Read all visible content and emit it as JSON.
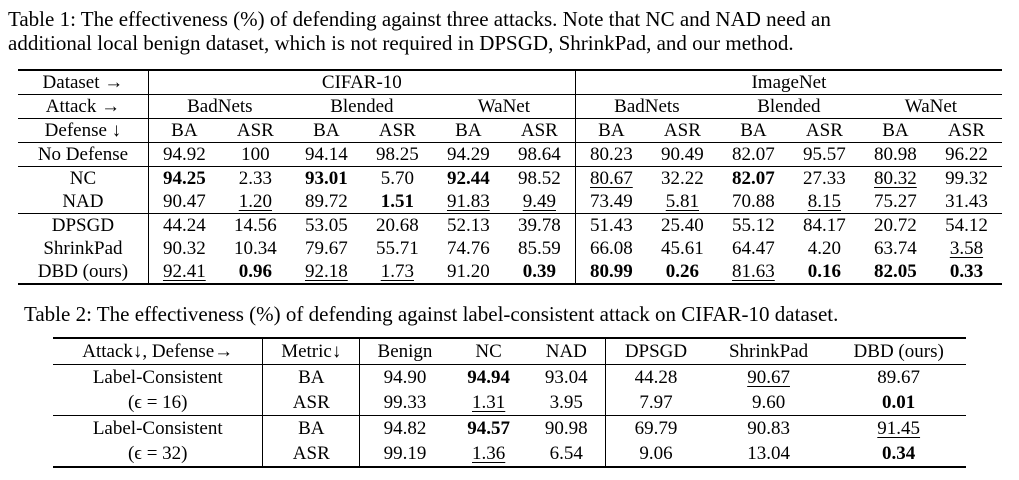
{
  "table1": {
    "caption_lines": [
      "Table 1: The effectiveness (%) of defending against three attacks. Note that NC and NAD need an",
      "additional local benign dataset, which is not required in DPSGD, ShrinkPad, and our method."
    ],
    "header": {
      "dataset_label": "Dataset →",
      "attack_label": "Attack →",
      "defense_label": "Defense ↓",
      "datasets": [
        "CIFAR-10",
        "ImageNet"
      ],
      "attacks": [
        "BadNets",
        "Blended",
        "WaNet",
        "BadNets",
        "Blended",
        "WaNet"
      ],
      "metrics": [
        "BA",
        "ASR",
        "BA",
        "ASR",
        "BA",
        "ASR",
        "BA",
        "ASR",
        "BA",
        "ASR",
        "BA",
        "ASR"
      ]
    },
    "rows": [
      {
        "defense": "No Defense",
        "cells": [
          {
            "v": "94.92"
          },
          {
            "v": "100"
          },
          {
            "v": "94.14"
          },
          {
            "v": "98.25"
          },
          {
            "v": "94.29"
          },
          {
            "v": "98.64"
          },
          {
            "v": "80.23"
          },
          {
            "v": "90.49"
          },
          {
            "v": "82.07"
          },
          {
            "v": "95.57"
          },
          {
            "v": "80.98"
          },
          {
            "v": "96.22"
          }
        ]
      },
      {
        "defense": "NC",
        "cells": [
          {
            "v": "94.25",
            "s": "b"
          },
          {
            "v": "2.33"
          },
          {
            "v": "93.01",
            "s": "b"
          },
          {
            "v": "5.70"
          },
          {
            "v": "92.44",
            "s": "b"
          },
          {
            "v": "98.52"
          },
          {
            "v": "80.67",
            "s": "u"
          },
          {
            "v": "32.22"
          },
          {
            "v": "82.07",
            "s": "b"
          },
          {
            "v": "27.33"
          },
          {
            "v": "80.32",
            "s": "u"
          },
          {
            "v": "99.32"
          }
        ]
      },
      {
        "defense": "NAD",
        "cells": [
          {
            "v": "90.47"
          },
          {
            "v": "1.20",
            "s": "u"
          },
          {
            "v": "89.72"
          },
          {
            "v": "1.51",
            "s": "b"
          },
          {
            "v": "91.83",
            "s": "u"
          },
          {
            "v": "9.49",
            "s": "u"
          },
          {
            "v": "73.49"
          },
          {
            "v": "5.81",
            "s": "u"
          },
          {
            "v": "70.88"
          },
          {
            "v": "8.15",
            "s": "u"
          },
          {
            "v": "75.27"
          },
          {
            "v": "31.43"
          }
        ]
      },
      {
        "defense": "DPSGD",
        "cells": [
          {
            "v": "44.24"
          },
          {
            "v": "14.56"
          },
          {
            "v": "53.05"
          },
          {
            "v": "20.68"
          },
          {
            "v": "52.13"
          },
          {
            "v": "39.78"
          },
          {
            "v": "51.43"
          },
          {
            "v": "25.40"
          },
          {
            "v": "55.12"
          },
          {
            "v": "84.17"
          },
          {
            "v": "20.72"
          },
          {
            "v": "54.12"
          }
        ]
      },
      {
        "defense": "ShrinkPad",
        "cells": [
          {
            "v": "90.32"
          },
          {
            "v": "10.34"
          },
          {
            "v": "79.67"
          },
          {
            "v": "55.71"
          },
          {
            "v": "74.76"
          },
          {
            "v": "85.59"
          },
          {
            "v": "66.08"
          },
          {
            "v": "45.61"
          },
          {
            "v": "64.47"
          },
          {
            "v": "4.20"
          },
          {
            "v": "63.74"
          },
          {
            "v": "3.58",
            "s": "u"
          }
        ]
      },
      {
        "defense": "DBD (ours)",
        "cells": [
          {
            "v": "92.41",
            "s": "u"
          },
          {
            "v": "0.96",
            "s": "b"
          },
          {
            "v": "92.18",
            "s": "u"
          },
          {
            "v": "1.73",
            "s": "u"
          },
          {
            "v": "91.20"
          },
          {
            "v": "0.39",
            "s": "b"
          },
          {
            "v": "80.99",
            "s": "b"
          },
          {
            "v": "0.26",
            "s": "b"
          },
          {
            "v": "81.63",
            "s": "u"
          },
          {
            "v": "0.16",
            "s": "b"
          },
          {
            "v": "82.05",
            "s": "b"
          },
          {
            "v": "0.33",
            "s": "b"
          }
        ]
      }
    ]
  },
  "table2": {
    "caption": "Table 2: The effectiveness (%) of defending against label-consistent attack on CIFAR-10 dataset.",
    "header": [
      "Attack↓, Defense→",
      "Metric↓",
      "Benign",
      "NC",
      "NAD",
      "DPSGD",
      "ShrinkPad",
      "DBD (ours)"
    ],
    "groups": [
      {
        "attack": "Label-Consistent",
        "param": "(ϵ = 16)",
        "rows": [
          {
            "metric": "BA",
            "cells": [
              {
                "v": "94.90"
              },
              {
                "v": "94.94",
                "s": "b"
              },
              {
                "v": "93.04"
              },
              {
                "v": "44.28"
              },
              {
                "v": "90.67",
                "s": "u"
              },
              {
                "v": "89.67"
              }
            ]
          },
          {
            "metric": "ASR",
            "cells": [
              {
                "v": "99.33"
              },
              {
                "v": "1.31",
                "s": "u"
              },
              {
                "v": "3.95"
              },
              {
                "v": "7.97"
              },
              {
                "v": "9.60"
              },
              {
                "v": "0.01",
                "s": "b"
              }
            ]
          }
        ]
      },
      {
        "attack": "Label-Consistent",
        "param": "(ϵ = 32)",
        "rows": [
          {
            "metric": "BA",
            "cells": [
              {
                "v": "94.82"
              },
              {
                "v": "94.57",
                "s": "b"
              },
              {
                "v": "90.98"
              },
              {
                "v": "69.79"
              },
              {
                "v": "90.83"
              },
              {
                "v": "91.45",
                "s": "u"
              }
            ]
          },
          {
            "metric": "ASR",
            "cells": [
              {
                "v": "99.19"
              },
              {
                "v": "1.36",
                "s": "u"
              },
              {
                "v": "6.54"
              },
              {
                "v": "9.06"
              },
              {
                "v": "13.04"
              },
              {
                "v": "0.34",
                "s": "b"
              }
            ]
          }
        ]
      }
    ]
  }
}
